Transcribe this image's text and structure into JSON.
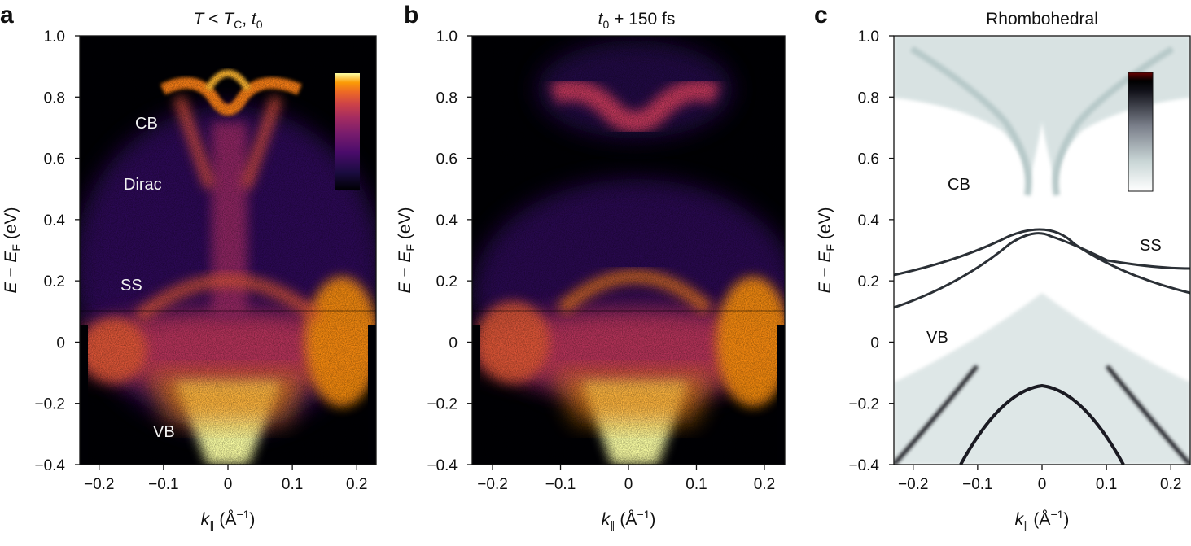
{
  "chart_data": [
    {
      "panel": "a",
      "type": "heatmap",
      "title": "T < TC, t0",
      "title_parts": {
        "T": "T",
        "lt": " < ",
        "TC_main": "T",
        "TC_sub": "C",
        "comma": ", ",
        "t0_main": "t",
        "t0_sub": "0"
      },
      "xlabel": {
        "main": "k",
        "sub": "∥",
        "rest": " (Å",
        "exp": "−1",
        "close": ")"
      },
      "ylabel": {
        "E": "E",
        "minus": " − ",
        "EF_main": "E",
        "EF_sub": "F",
        "unit": " (eV)"
      },
      "xlim": [
        -0.23,
        0.23
      ],
      "ylim": [
        -0.4,
        1.0
      ],
      "xticks": [
        -0.2,
        -0.1,
        0,
        0.1,
        0.2
      ],
      "xtick_labels": [
        "−0.2",
        "−0.1",
        "0",
        "0.1",
        "0.2"
      ],
      "yticks": [
        -0.4,
        -0.2,
        0,
        0.2,
        0.4,
        0.6,
        0.8,
        1.0
      ],
      "ytick_labels": [
        "−0.4",
        "−0.2",
        "0",
        "0.2",
        "0.4",
        "0.6",
        "0.8",
        "1.0"
      ],
      "colormap": "inferno",
      "colorbar": "inset, top-right",
      "annotations": [
        {
          "text": "CB",
          "x": -0.13,
          "y": 0.72
        },
        {
          "text": "Dirac",
          "x": -0.13,
          "y": 0.52
        },
        {
          "text": "SS",
          "x": -0.15,
          "y": 0.19
        },
        {
          "text": "VB",
          "x": -0.1,
          "y": -0.28
        }
      ]
    },
    {
      "panel": "b",
      "type": "heatmap",
      "title": "t0 + 150 fs",
      "title_parts": {
        "t0_main": "t",
        "t0_sub": "0",
        "rest": " + 150 fs"
      },
      "xlabel": {
        "main": "k",
        "sub": "∥",
        "rest": " (Å",
        "exp": "−1",
        "close": ")"
      },
      "ylabel": {
        "E": "E",
        "minus": " − ",
        "EF_main": "E",
        "EF_sub": "F",
        "unit": " (eV)"
      },
      "xlim": [
        -0.23,
        0.23
      ],
      "ylim": [
        -0.4,
        1.0
      ],
      "xticks": [
        -0.2,
        -0.1,
        0,
        0.1,
        0.2
      ],
      "xtick_labels": [
        "−0.2",
        "−0.1",
        "0",
        "0.1",
        "0.2"
      ],
      "yticks": [
        -0.4,
        -0.2,
        0,
        0.2,
        0.4,
        0.6,
        0.8,
        1.0
      ],
      "ytick_labels": [
        "−0.4",
        "−0.2",
        "0",
        "0.2",
        "0.4",
        "0.6",
        "0.8",
        "1.0"
      ],
      "colormap": "inferno"
    },
    {
      "panel": "c",
      "type": "heatmap",
      "title": "Rhombohedral",
      "xlabel": {
        "main": "k",
        "sub": "∥",
        "rest": " (Å",
        "exp": "−1",
        "close": ")"
      },
      "ylabel": {
        "E": "E",
        "minus": " − ",
        "EF_main": "E",
        "EF_sub": "F",
        "unit": " (eV)"
      },
      "xlim": [
        -0.23,
        0.23
      ],
      "ylim": [
        -0.4,
        1.0
      ],
      "xticks": [
        -0.2,
        -0.1,
        0,
        0.1,
        0.2
      ],
      "xtick_labels": [
        "−0.2",
        "−0.1",
        "0",
        "0.1",
        "0.2"
      ],
      "yticks": [
        -0.4,
        -0.2,
        0,
        0.2,
        0.4,
        0.6,
        0.8,
        1.0
      ],
      "ytick_labels": [
        "−0.4",
        "−0.2",
        "0",
        "0.2",
        "0.4",
        "0.6",
        "0.8",
        "1.0"
      ],
      "colormap": "bone (white to black to dark red)",
      "colorbar": "inset, top-right",
      "annotations": [
        {
          "text": "CB",
          "x": -0.17,
          "y": 0.52
        },
        {
          "text": "SS",
          "x": 0.19,
          "y": 0.31
        },
        {
          "text": "VB",
          "x": -0.18,
          "y": 0.02
        }
      ]
    }
  ],
  "panel_letters": [
    "a",
    "b",
    "c"
  ]
}
